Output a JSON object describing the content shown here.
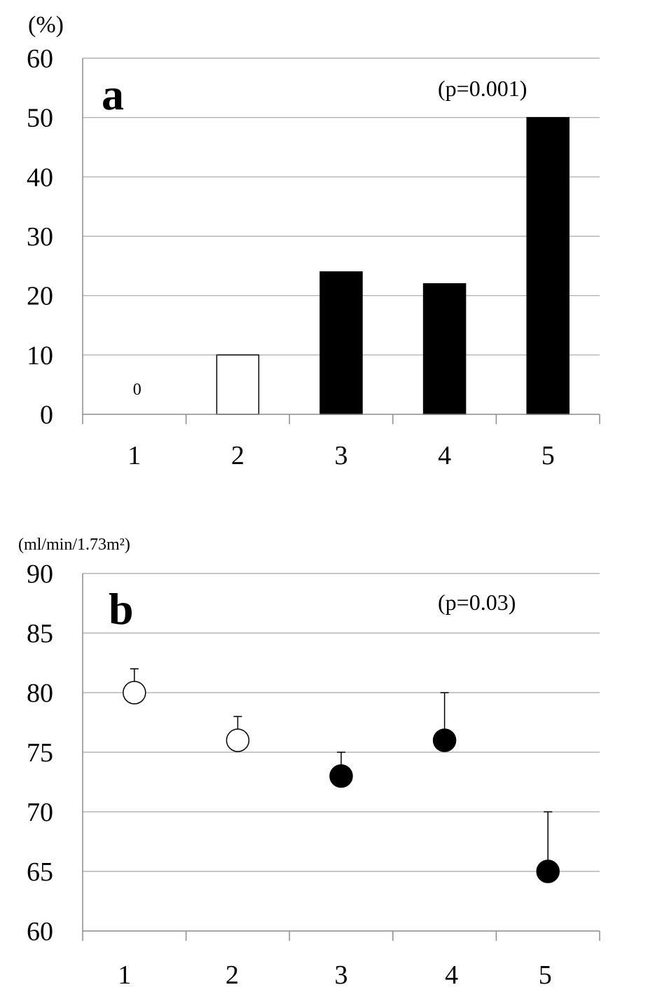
{
  "chart_data": [
    {
      "type": "bar",
      "panel_label": "a",
      "ylabel": "(%)",
      "annotation": "(p=0.001)",
      "categories": [
        "1",
        "2",
        "3",
        "4",
        "5"
      ],
      "values": [
        0,
        10,
        24,
        22,
        50
      ],
      "bar_fills": [
        "#ffffff",
        "#ffffff",
        "#000000",
        "#000000",
        "#000000"
      ],
      "data_labels": [
        "0",
        "",
        "",
        "",
        ""
      ],
      "ylim": [
        0,
        60
      ],
      "yticks": [
        "0",
        "10",
        "20",
        "30",
        "40",
        "50",
        "60"
      ],
      "grid": true
    },
    {
      "type": "scatter",
      "panel_label": "b",
      "ylabel": "(ml/min/1.73m²)",
      "annotation": "(p=0.03)",
      "categories": [
        "1",
        "2",
        "3",
        "4",
        "5"
      ],
      "values": [
        80,
        76,
        73,
        76,
        65
      ],
      "error_upper": [
        82,
        78,
        75,
        80,
        70
      ],
      "marker_fills": [
        "#ffffff",
        "#ffffff",
        "#000000",
        "#000000",
        "#000000"
      ],
      "ylim": [
        60,
        90
      ],
      "yticks": [
        "60",
        "65",
        "70",
        "75",
        "80",
        "85",
        "90"
      ],
      "grid": true
    }
  ]
}
